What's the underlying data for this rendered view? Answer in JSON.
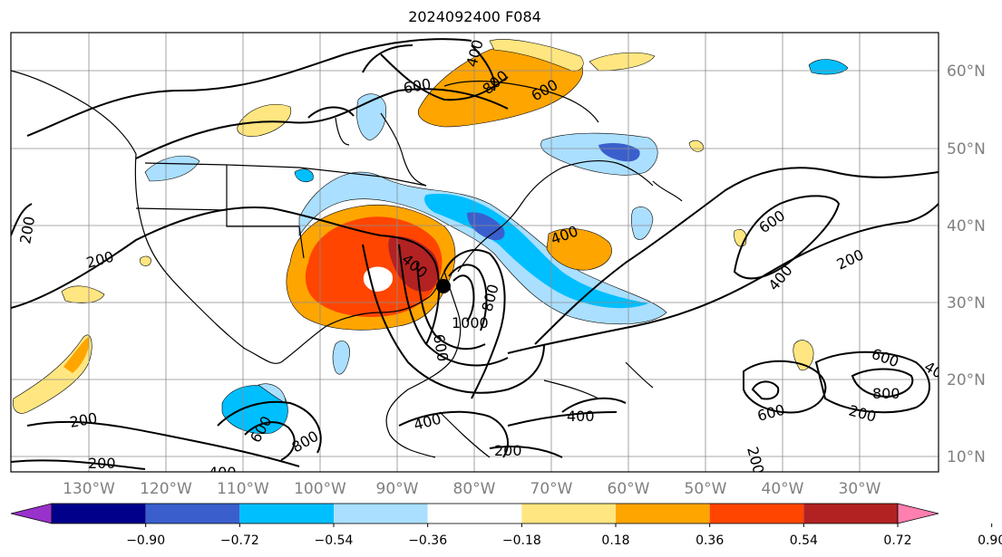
{
  "title": "2024092400 F084",
  "map": {
    "lon_labels": [
      "130°W",
      "120°W",
      "110°W",
      "100°W",
      "90°W",
      "80°W",
      "70°W",
      "60°W",
      "50°W",
      "40°W",
      "30°W"
    ],
    "lat_labels": [
      "60°N",
      "50°N",
      "40°N",
      "30°N",
      "20°N",
      "10°N"
    ],
    "contour_labels": [
      "200",
      "200",
      "200",
      "200",
      "200",
      "200",
      "200",
      "400",
      "400",
      "400",
      "400",
      "400",
      "400",
      "400",
      "600",
      "600",
      "600",
      "600",
      "600",
      "600",
      "800",
      "800",
      "800",
      "800",
      "1000",
      "400",
      "600",
      "200"
    ]
  },
  "colorbar": {
    "ticks": [
      "−0.90",
      "−0.72",
      "−0.54",
      "−0.36",
      "−0.18",
      "0.18",
      "0.36",
      "0.54",
      "0.72",
      "0.90"
    ],
    "colors": [
      "#9932cc",
      "#00008b",
      "#3a5fcd",
      "#00bfff",
      "#aadfff",
      "#ffffff",
      "#ffe680",
      "#ffa500",
      "#ff4500",
      "#b22222",
      "#ff7fae"
    ]
  }
}
